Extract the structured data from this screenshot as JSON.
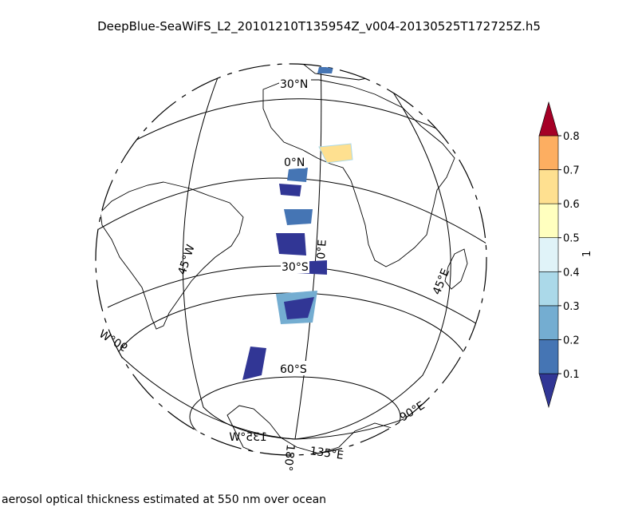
{
  "title": "DeepBlue-SeaWiFS_L2_20101210T135954Z_v004-20130525T172725Z.h5",
  "caption": "aerosol optical thickness estimated at 550 nm over ocean",
  "colorbar": {
    "unit_label": "1",
    "ticks": [
      "0.1",
      "0.2",
      "0.3",
      "0.4",
      "0.5",
      "0.6",
      "0.7",
      "0.8"
    ],
    "colors": [
      "#313695",
      "#4575b4",
      "#74add1",
      "#abd9e9",
      "#e0f3f8",
      "#ffffbf",
      "#fee090",
      "#fdae61",
      "#f46d43",
      "#d73027",
      "#a50026"
    ]
  },
  "gridlines": {
    "lat": [
      "30°N",
      "0°N",
      "30°S",
      "60°S"
    ],
    "lon": [
      "45°W",
      "0°E",
      "45°E",
      "90°W",
      "90°E",
      "135°W",
      "135°E",
      "180°"
    ]
  },
  "projection": "orthographic",
  "colors": {
    "coast": "#000000",
    "aod_low": "#313695",
    "aod_mid": "#74add1",
    "aod_high": "#fee090"
  }
}
